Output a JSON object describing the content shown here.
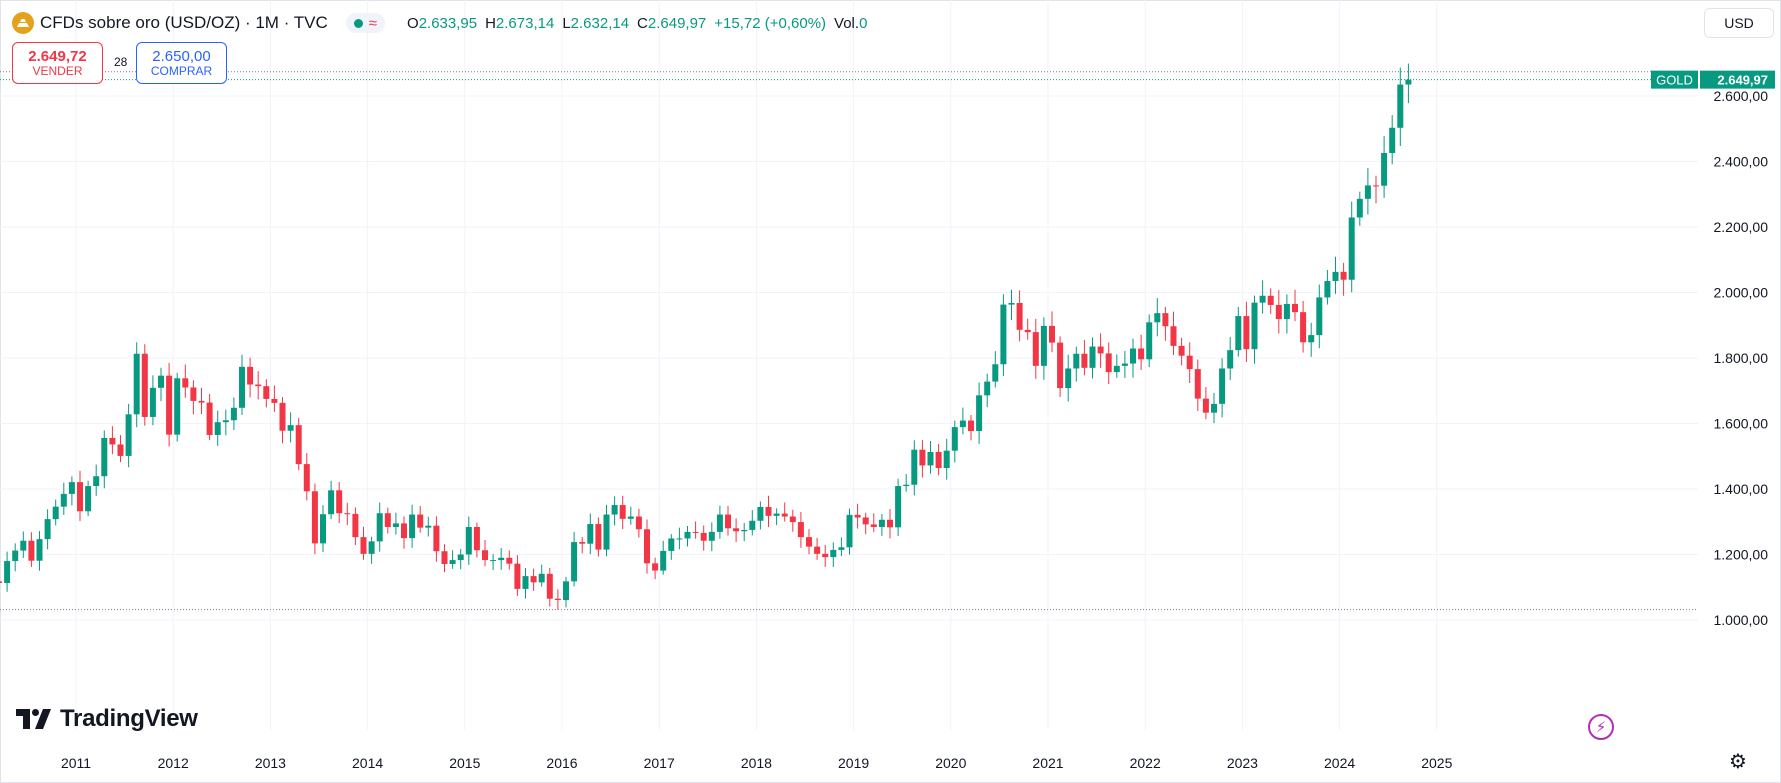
{
  "header": {
    "title": "CFDs sobre oro (USD/OZ) · 1M · TVC",
    "pill_icon": "≈",
    "ohlc": [
      {
        "k": "O",
        "v": "2.633,95"
      },
      {
        "k": "H",
        "v": "2.673,14"
      },
      {
        "k": "L",
        "v": "2.632,14"
      },
      {
        "k": "C",
        "v": "2.649,97"
      },
      {
        "k": "",
        "v": "+15,72 (+0,60%)"
      },
      {
        "k": "Vol.",
        "v": "0"
      }
    ]
  },
  "currency": "USD",
  "sell": {
    "price": "2.649,72",
    "label": "VENDER"
  },
  "buy": {
    "price": "2.650,00",
    "label": "COMPRAR"
  },
  "spread": "28",
  "logo_text": "TradingView",
  "price_tag": {
    "symbol": "GOLD",
    "value": "2.649,97"
  },
  "colors": {
    "up": "#089981",
    "down": "#f23645",
    "grid": "#f0f3fa",
    "pricetag": "#089981"
  },
  "chart_data": {
    "type": "candlestick",
    "interval": "1M",
    "ylim": [
      950,
      2700
    ],
    "yticks": [
      1000,
      1200,
      1400,
      1600,
      1800,
      2000,
      2200,
      2400,
      2600
    ],
    "ytick_labels": [
      "1.000,00",
      "1.200,00",
      "1.400,00",
      "1.600,00",
      "1.800,00",
      "2.000,00",
      "2.200,00",
      "2.400,00",
      "2.600,00"
    ],
    "xticks": [
      "2011",
      "2012",
      "2013",
      "2014",
      "2015",
      "2016",
      "2017",
      "2018",
      "2019",
      "2020",
      "2021",
      "2022",
      "2023",
      "2024",
      "2025"
    ],
    "first_date": "2010-01",
    "closes": [
      1081,
      1118,
      1113,
      1180,
      1212,
      1242,
      1181,
      1247,
      1308,
      1346,
      1385,
      1421,
      1332,
      1409,
      1439,
      1556,
      1536,
      1501,
      1628,
      1813,
      1620,
      1709,
      1746,
      1566,
      1738,
      1710,
      1669,
      1664,
      1565,
      1604,
      1610,
      1648,
      1773,
      1719,
      1714,
      1675,
      1663,
      1578,
      1595,
      1476,
      1393,
      1234,
      1323,
      1396,
      1326,
      1324,
      1253,
      1202,
      1240,
      1326,
      1284,
      1295,
      1250,
      1322,
      1282,
      1288,
      1210,
      1171,
      1183,
      1200,
      1284,
      1213,
      1183,
      1183,
      1190,
      1172,
      1095,
      1134,
      1115,
      1141,
      1065,
      1061,
      1118,
      1238,
      1233,
      1293,
      1215,
      1322,
      1351,
      1309,
      1316,
      1277,
      1173,
      1151,
      1211,
      1249,
      1249,
      1269,
      1266,
      1242,
      1269,
      1322,
      1280,
      1271,
      1275,
      1303,
      1345,
      1318,
      1325,
      1316,
      1299,
      1253,
      1224,
      1202,
      1192,
      1214,
      1222,
      1321,
      1313,
      1292,
      1284,
      1306,
      1283,
      1409,
      1413,
      1520,
      1472,
      1513,
      1464,
      1517,
      1589,
      1609,
      1577,
      1686,
      1728,
      1781,
      1963,
      1968,
      1886,
      1879,
      1776,
      1898,
      1847,
      1708,
      1768,
      1813,
      1770,
      1835,
      1814,
      1757,
      1776,
      1783,
      1829,
      1796,
      1909,
      1937,
      1897,
      1837,
      1807,
      1766,
      1676,
      1633,
      1660,
      1768,
      1824,
      1928,
      1827,
      1969,
      1990,
      1962,
      1919,
      1965,
      1940,
      1848,
      1870,
      1985,
      2035,
      2063,
      2039,
      2229,
      2286,
      2327,
      2326,
      2426,
      2503,
      2635,
      2650
    ]
  }
}
